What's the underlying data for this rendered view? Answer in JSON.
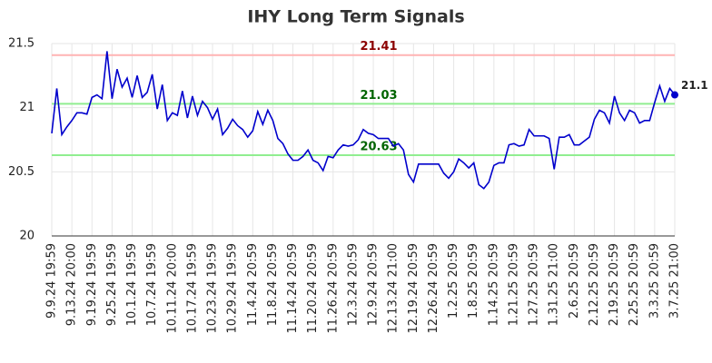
{
  "chart_data": {
    "type": "line",
    "title": "IHY Long Term Signals",
    "categories": [
      "9.9.24 19:59",
      null,
      null,
      null,
      "9.13.24 20:00",
      null,
      null,
      null,
      "9.19.24 19:59",
      null,
      null,
      null,
      "9.25.24 19:59",
      null,
      null,
      null,
      "10.1.24 19:59",
      null,
      null,
      null,
      "10.7.24 19:59",
      null,
      null,
      null,
      "10.11.24 20:00",
      null,
      null,
      null,
      "10.17.24 19:59",
      null,
      null,
      null,
      "10.23.24 19:59",
      null,
      null,
      null,
      "10.29.24 19:59",
      null,
      null,
      null,
      "11.4.24 20:59",
      null,
      null,
      null,
      "11.8.24 20:59",
      null,
      null,
      null,
      "11.14.24 20:59",
      null,
      null,
      null,
      "11.20.24 20:59",
      null,
      null,
      null,
      "11.26.24 20:59",
      null,
      null,
      null,
      "12.3.24 20:59",
      null,
      null,
      null,
      "12.9.24 20:59",
      null,
      null,
      null,
      "12.13.24 21:00",
      null,
      null,
      null,
      "12.19.24 20:59",
      null,
      null,
      null,
      "12.26.24 20:59",
      null,
      null,
      null,
      "1.2.25 20:59",
      null,
      null,
      null,
      "1.8.25 20:59",
      null,
      null,
      null,
      "1.14.25 20:59",
      null,
      null,
      null,
      "1.21.25 20:59",
      null,
      null,
      null,
      "1.27.25 20:59",
      null,
      null,
      null,
      "1.31.25 21:00",
      null,
      null,
      null,
      "2.6.25 20:59",
      null,
      null,
      null,
      "2.12.25 20:59",
      null,
      null,
      null,
      "2.19.25 20:59",
      null,
      null,
      null,
      "2.25.25 20:59",
      null,
      null,
      null,
      "3.3.25 20:59",
      null,
      null,
      null,
      "3.7.25 21:00"
    ],
    "series": [
      {
        "color": "#0000cc",
        "values": [
          20.8,
          21.15,
          20.79,
          20.85,
          20.9,
          20.96,
          20.96,
          20.95,
          21.08,
          21.1,
          21.07,
          21.44,
          21.07,
          21.3,
          21.16,
          21.23,
          21.08,
          21.25,
          21.08,
          21.12,
          21.26,
          20.99,
          21.18,
          20.9,
          20.96,
          20.94,
          21.13,
          20.92,
          21.09,
          20.94,
          21.05,
          21.0,
          20.91,
          20.99,
          20.79,
          20.84,
          20.91,
          20.86,
          20.83,
          20.77,
          20.82,
          20.97,
          20.87,
          20.98,
          20.9,
          20.76,
          20.72,
          20.64,
          20.59,
          20.59,
          20.62,
          20.67,
          20.59,
          20.57,
          20.51,
          20.62,
          20.61,
          20.67,
          20.71,
          20.7,
          20.71,
          20.75,
          20.83,
          20.8,
          20.79,
          20.76,
          20.76,
          20.76,
          20.7,
          20.72,
          20.67,
          20.48,
          20.42,
          20.56,
          20.56,
          20.56,
          20.56,
          20.56,
          20.49,
          20.45,
          20.5,
          20.6,
          20.57,
          20.53,
          20.57,
          20.4,
          20.37,
          20.42,
          20.55,
          20.57,
          20.57,
          20.71,
          20.72,
          20.7,
          20.71,
          20.83,
          20.78,
          20.78,
          20.78,
          20.76,
          20.52,
          20.77,
          20.77,
          20.79,
          20.71,
          20.71,
          20.74,
          20.77,
          20.91,
          20.98,
          20.96,
          20.88,
          21.09,
          20.96,
          20.9,
          20.98,
          20.96,
          20.88,
          20.9,
          20.9,
          21.04,
          21.17,
          21.05,
          21.15,
          21.1
        ]
      }
    ],
    "hlines": [
      {
        "value": 21.41,
        "color": "#ffb3b3",
        "label_color": "#8b0000"
      },
      {
        "value": 21.03,
        "color": "#90ee90",
        "label_color": "#006400"
      },
      {
        "value": 20.63,
        "color": "#90ee90",
        "label_color": "#006400"
      }
    ],
    "ylim": [
      20,
      21.5
    ],
    "yticks": [
      20,
      20.5,
      21,
      21.5
    ],
    "grid": true
  }
}
